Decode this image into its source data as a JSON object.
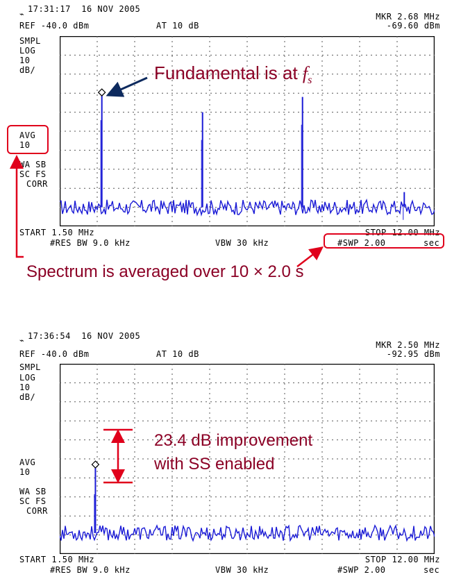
{
  "colors": {
    "trace": "#1a1ad6",
    "annotation_text": "#8b0025",
    "highlight": "#e0001b",
    "arrow_dark": "#0d2a5e"
  },
  "panel1": {
    "timestamp": "17:31:17  16 NOV 2005",
    "ref": "REF -40.0 dBm",
    "atten": "AT 10 dB",
    "marker_freq": "MKR 2.68 MHz",
    "marker_level": "-69.60 dBm",
    "left_labels": [
      "SMPL",
      "LOG",
      "10",
      "dB/"
    ],
    "avg_label": "AVG",
    "avg_value": "10",
    "mode_labels": [
      "WA SB",
      "SC FS",
      "CORR"
    ],
    "start": "START 1.50 MHz",
    "stop": "STOP 12.00 MHz",
    "res_bw": "#RES BW 9.0 kHz",
    "vbw": "VBW 30 kHz",
    "swp": "#SWP 2.00",
    "swp_unit": "sec",
    "annotation_fundamental": "Fundamental is at",
    "annotation_fs_symbol": "f",
    "annotation_fs_sub": "s",
    "annotation_average": "Spectrum is averaged over 10 × 2.0 s"
  },
  "panel2": {
    "timestamp": "17:36:54  16 NOV 2005",
    "ref": "REF -40.0 dBm",
    "atten": "AT 10 dB",
    "marker_freq": "MKR 2.50 MHz",
    "marker_level": "-92.95 dBm",
    "left_labels": [
      "SMPL",
      "LOG",
      "10",
      "dB/"
    ],
    "avg_label": "AVG",
    "avg_value": "10",
    "mode_labels": [
      "WA SB",
      "SC FS",
      "CORR"
    ],
    "start": "START 1.50 MHz",
    "stop": "STOP 12.00 MHz",
    "res_bw": "#RES BW 9.0 kHz",
    "vbw": "VBW 30 kHz",
    "swp": "#SWP 2.00",
    "swp_unit": "sec",
    "annotation_improvement_line1": "23.4 dB improvement",
    "annotation_improvement_line2": "with SS enabled"
  },
  "chart_data": [
    {
      "type": "line",
      "xlim": [
        1.5,
        12.0
      ],
      "ylim": [
        -140,
        -40
      ],
      "grid": true,
      "series": [
        {
          "noise_floor_dbm": -130,
          "peaks": [
            {
              "x": 2.68,
              "y": -69.6
            },
            {
              "x": 5.5,
              "y": -80
            },
            {
              "x": 8.3,
              "y": -72
            },
            {
              "x": 11.15,
              "y": -122
            }
          ],
          "marker": {
            "x": 2.68,
            "y": -69.6
          }
        }
      ]
    },
    {
      "type": "line",
      "xlim": [
        1.5,
        12.0
      ],
      "ylim": [
        -140,
        -40
      ],
      "grid": true,
      "series": [
        {
          "noise_floor_dbm": -129,
          "peaks": [
            {
              "x": 2.5,
              "y": -94
            }
          ],
          "marker": {
            "x": 2.5,
            "y": -92.95
          }
        }
      ]
    }
  ]
}
